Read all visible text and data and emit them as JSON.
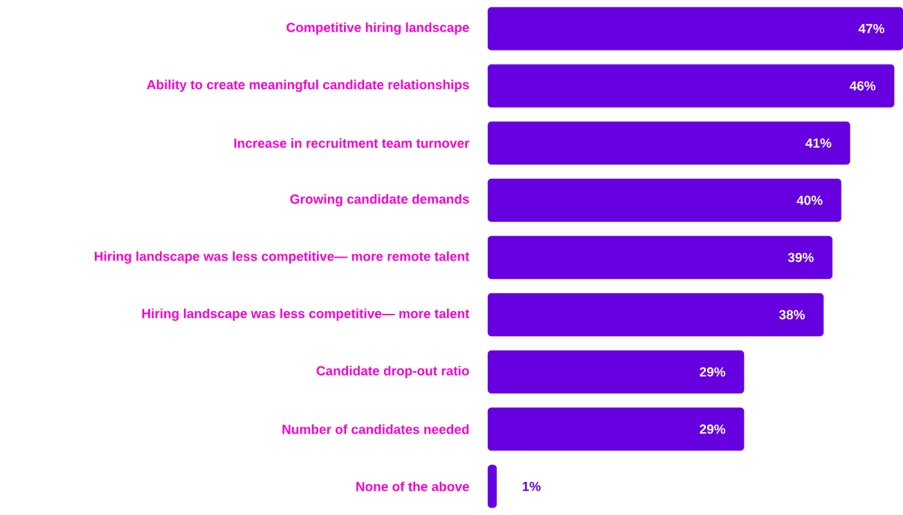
{
  "chart_data": {
    "type": "bar",
    "orientation": "horizontal",
    "categories": [
      "Competitive hiring landscape",
      "Ability to create meaningful candidate relationships",
      "Increase in recruitment team turnover",
      "Growing candidate demands",
      "Hiring landscape was less competitive— more remote talent",
      "Hiring landscape was less competitive— more talent",
      "Candidate drop-out ratio",
      "Number of candidates needed",
      "None of the above"
    ],
    "values": [
      47,
      46,
      41,
      40,
      39,
      38,
      29,
      29,
      1
    ],
    "value_labels": [
      "47%",
      "46%",
      "41%",
      "40%",
      "39%",
      "38%",
      "29%",
      "29%",
      "1%"
    ],
    "color": "#6600e0"
  }
}
